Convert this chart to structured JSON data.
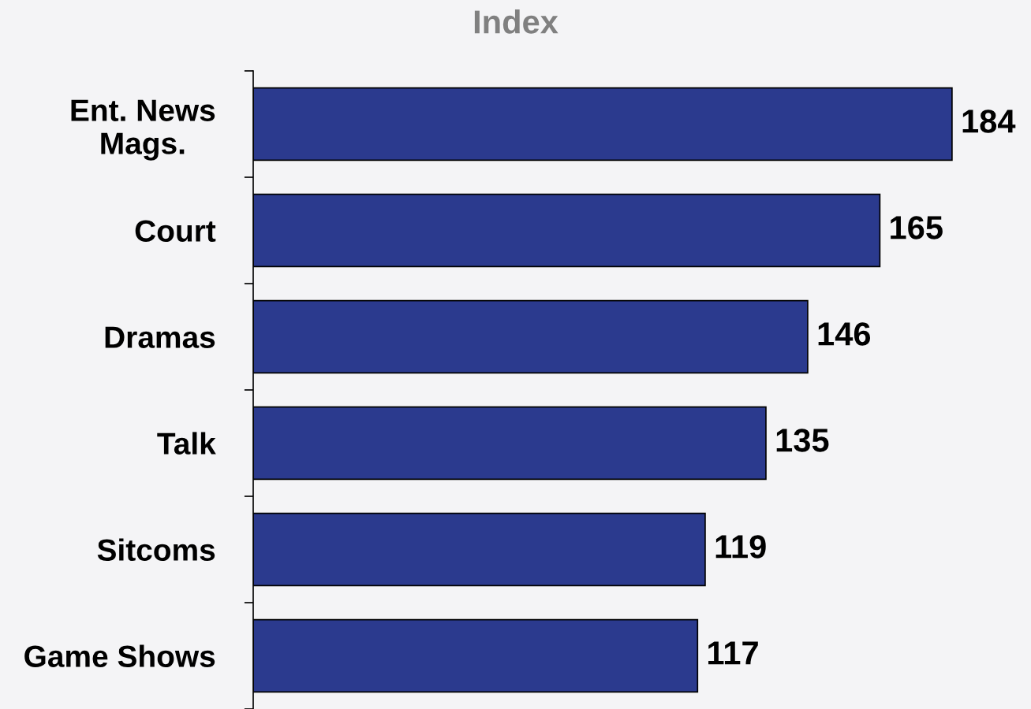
{
  "chart_data": {
    "type": "bar",
    "orientation": "horizontal",
    "title": "Index",
    "categories": [
      "Ent. News\nMags.",
      "Court",
      "Dramas",
      "Talk",
      "Sitcoms",
      "Game Shows"
    ],
    "values": [
      184,
      165,
      146,
      135,
      119,
      117
    ],
    "color": "#2b3a8e",
    "data_labels": true,
    "grid": false,
    "legend": false
  }
}
